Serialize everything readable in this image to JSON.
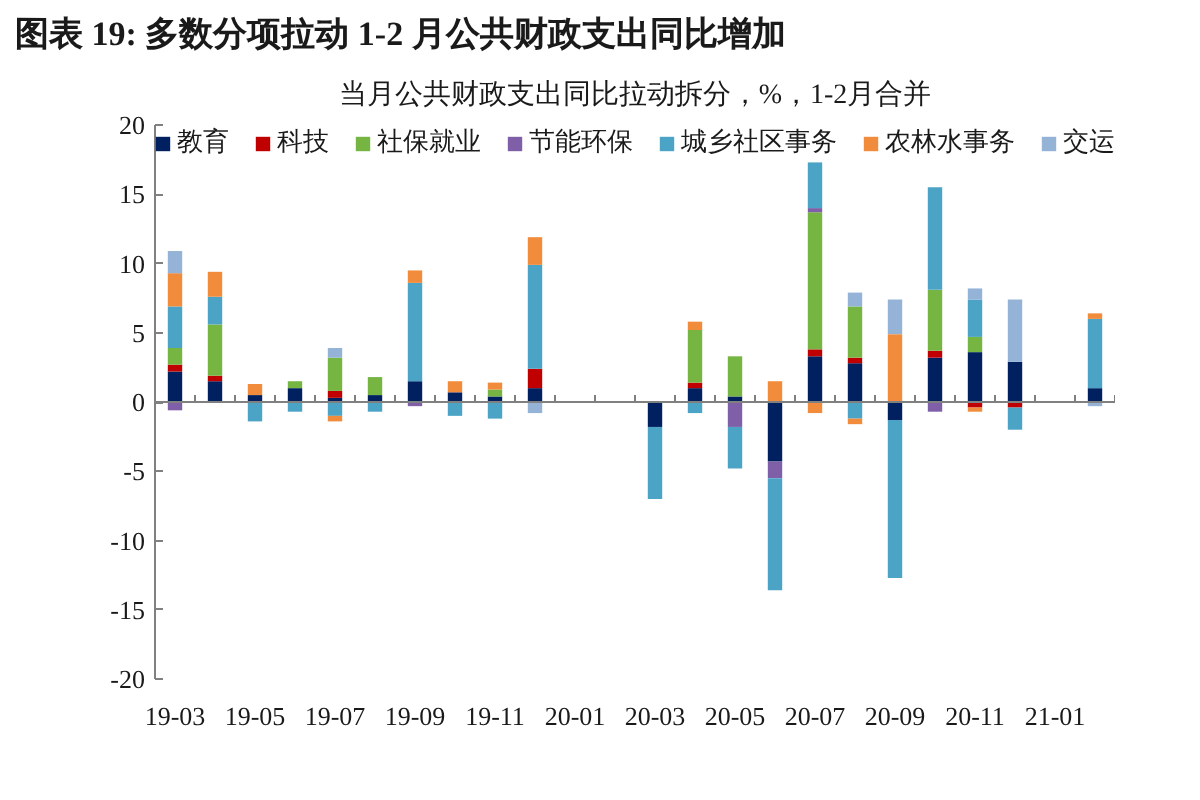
{
  "chart_data": {
    "type": "bar",
    "title": "图表 19: 多数分项拉动 1-2 月公共财政支出同比增加",
    "subtitle": "当月公共财政支出同比拉动拆分，%，1-2月合并",
    "categories": [
      "19-03",
      null,
      "19-05",
      null,
      "19-07",
      null,
      "19-09",
      null,
      "19-11",
      null,
      "20-01",
      null,
      "20-03",
      null,
      "20-05",
      null,
      "20-07",
      null,
      "20-09",
      null,
      "20-11",
      null,
      "21-01",
      null
    ],
    "stacked": true,
    "series": [
      {
        "name": "教育",
        "color": "#002060",
        "values": [
          2.2,
          1.5,
          0.5,
          1.0,
          0.3,
          0.5,
          1.5,
          0.7,
          0.4,
          1.0,
          null,
          null,
          -1.8,
          1.0,
          0.4,
          -4.3,
          3.3,
          2.8,
          -1.3,
          3.2,
          3.6,
          2.9,
          null,
          1.0
        ]
      },
      {
        "name": "科技",
        "color": "#c00000",
        "values": [
          0.5,
          0.4,
          null,
          null,
          0.5,
          null,
          null,
          null,
          null,
          1.4,
          null,
          null,
          null,
          0.4,
          null,
          null,
          0.5,
          0.4,
          null,
          0.5,
          -0.4,
          -0.4,
          null,
          null
        ]
      },
      {
        "name": "社保就业",
        "color": "#77b543",
        "values": [
          1.2,
          3.7,
          null,
          0.5,
          2.4,
          1.3,
          null,
          null,
          0.5,
          null,
          null,
          null,
          null,
          3.8,
          2.9,
          null,
          9.9,
          3.7,
          null,
          4.4,
          1.1,
          null,
          null,
          null
        ]
      },
      {
        "name": "节能环保",
        "color": "#7f5fa8",
        "values": [
          -0.6,
          null,
          null,
          null,
          null,
          null,
          -0.3,
          null,
          null,
          null,
          null,
          null,
          null,
          null,
          -1.8,
          -1.2,
          0.3,
          null,
          null,
          -0.7,
          null,
          null,
          null,
          null
        ]
      },
      {
        "name": "城乡社区事务",
        "color": "#4ba3c6",
        "values": [
          3.0,
          2.0,
          -1.4,
          -0.7,
          -1.0,
          -0.7,
          7.1,
          -1.0,
          -1.2,
          7.5,
          null,
          null,
          -5.2,
          -0.8,
          -3.0,
          -8.1,
          3.3,
          -1.2,
          -11.4,
          7.4,
          2.7,
          -1.6,
          null,
          5.0
        ]
      },
      {
        "name": "农林水事务",
        "color": "#f08c3c",
        "values": [
          2.4,
          1.8,
          0.8,
          null,
          -0.4,
          null,
          0.9,
          0.8,
          0.5,
          2.0,
          null,
          null,
          null,
          0.6,
          null,
          1.5,
          -0.8,
          -0.4,
          4.9,
          null,
          -0.3,
          null,
          null,
          0.4
        ]
      },
      {
        "name": "交运",
        "color": "#95b3d7",
        "values": [
          1.6,
          null,
          null,
          null,
          0.7,
          null,
          null,
          null,
          null,
          -0.8,
          null,
          null,
          null,
          null,
          null,
          null,
          null,
          1.0,
          2.5,
          null,
          0.8,
          4.5,
          null,
          -0.3
        ]
      }
    ],
    "ylim": [
      -20,
      20
    ],
    "yticks": [
      -20,
      -15,
      -10,
      -5,
      0,
      5,
      10,
      15,
      20
    ],
    "ref_lines": [
      {
        "axis": "y",
        "value": 0,
        "color": "#808080"
      }
    ],
    "grid": false,
    "legend": "top"
  }
}
